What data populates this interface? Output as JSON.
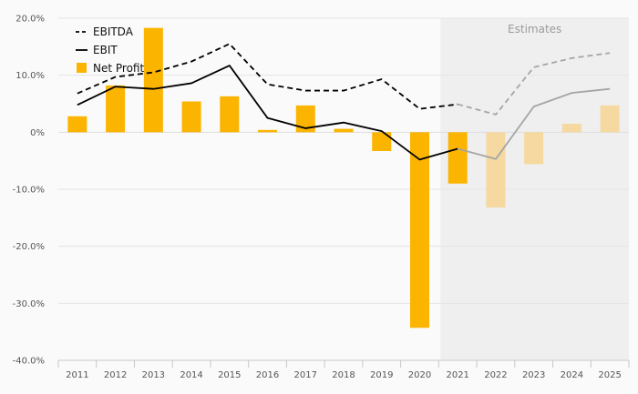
{
  "chart_data": {
    "type": "bar+line",
    "categories": [
      "2011",
      "2012",
      "2013",
      "2014",
      "2015",
      "2016",
      "2017",
      "2018",
      "2019",
      "2020",
      "2021",
      "2022",
      "2023",
      "2024",
      "2025"
    ],
    "y_ticks": [
      "20.0%",
      "10.0%",
      "0%",
      "-10.0%",
      "-20.0%",
      "-30.0%",
      "-40.0%"
    ],
    "ylim": [
      -40,
      20
    ],
    "estimates_label": "Estimates",
    "estimates_from": "2022",
    "series": [
      {
        "name": "EBITDA",
        "kind": "line",
        "style": "dashed",
        "color": "#000000",
        "values": [
          6.8,
          9.7,
          10.5,
          12.4,
          15.5,
          8.4,
          7.3,
          7.3,
          9.3,
          4.1,
          4.9,
          3.1,
          11.4,
          13.0,
          13.9
        ]
      },
      {
        "name": "EBIT",
        "kind": "line",
        "style": "solid",
        "color": "#000000",
        "values": [
          4.8,
          8.0,
          7.6,
          8.6,
          11.7,
          2.5,
          0.7,
          1.7,
          0.2,
          -4.8,
          -2.9,
          -4.7,
          4.5,
          6.9,
          7.6
        ]
      },
      {
        "name": "Net Profit",
        "kind": "bar",
        "color": "#fbb400",
        "values": [
          2.8,
          8.2,
          18.3,
          5.4,
          6.3,
          0.4,
          4.7,
          0.6,
          -3.3,
          -34.3,
          -9.0,
          -13.2,
          -5.6,
          1.5,
          4.7
        ]
      }
    ],
    "legend_position": "top-left",
    "grid": true,
    "colors": {
      "estimate_band": "#efefef",
      "estimate_line": "#a5a5a5",
      "estimate_bar": "#f5d9a0"
    }
  }
}
